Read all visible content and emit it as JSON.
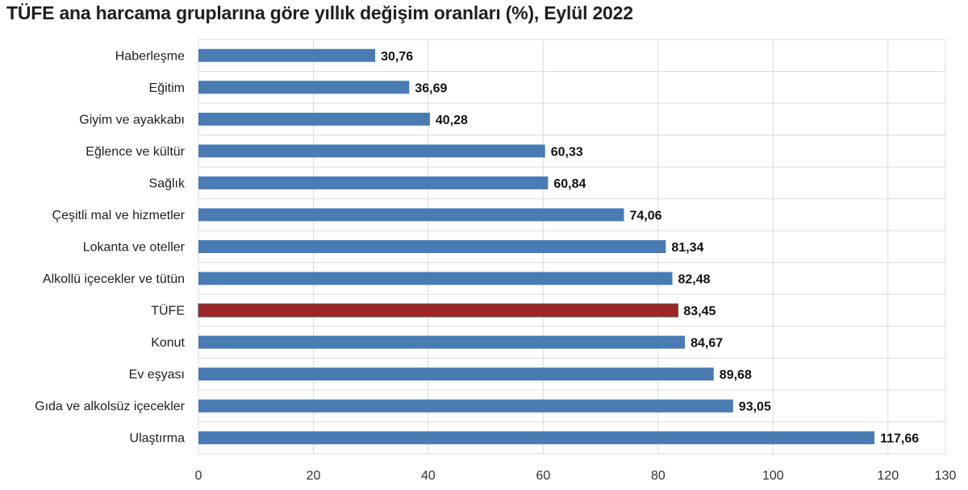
{
  "title": "TÜFE ana harcama gruplarına göre yıllık değişim oranları (%), Eylül 2022",
  "chart_data": {
    "type": "bar",
    "orientation": "horizontal",
    "categories": [
      "Haberleşme",
      "Eğitim",
      "Giyim ve ayakkabı",
      "Eğlence ve kültür",
      "Sağlık",
      "Çeşitli mal ve hizmetler",
      "Lokanta ve oteller",
      "Alkollü içecekler ve tütün",
      "TÜFE",
      "Konut",
      "Ev eşyası",
      "Gıda ve alkolsüz içecekler",
      "Ulaştırma"
    ],
    "values": [
      30.76,
      36.69,
      40.28,
      60.33,
      60.84,
      74.06,
      81.34,
      82.48,
      83.45,
      84.67,
      89.68,
      93.05,
      117.66
    ],
    "value_labels": [
      "30,76",
      "36,69",
      "40,28",
      "60,33",
      "60,84",
      "74,06",
      "81,34",
      "82,48",
      "83,45",
      "84,67",
      "89,68",
      "93,05",
      "117,66"
    ],
    "xlim": [
      0,
      130
    ],
    "x_ticks": [
      "0",
      "20",
      "40",
      "60",
      "80",
      "100",
      "120",
      "130"
    ],
    "x_tick_values": [
      0,
      20,
      40,
      60,
      80,
      100,
      120,
      130
    ],
    "grid": true,
    "colors": {
      "bar": "#4a7bb3",
      "highlight": "#9e2626",
      "grid": "#dcdcdc"
    },
    "highlight_category": "TÜFE"
  }
}
